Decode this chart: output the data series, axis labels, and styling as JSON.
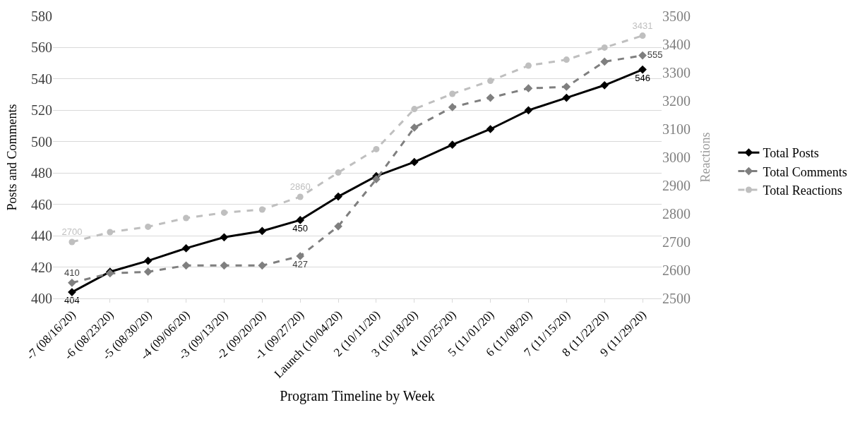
{
  "chart_data": {
    "type": "line",
    "xlabel": "Program Timeline by Week",
    "ylabel": "Posts and Comments",
    "y2label": "Reactions",
    "categories": [
      "-7 (08/16/20)",
      "-6 (08/23/20)",
      "-5 (08/30/20)",
      "-4 (09/06/20)",
      "-3 (09/13/20)",
      "-2 (09/20/20)",
      "-1 (09/27/20)",
      "Launch (10/04/20)",
      "2 (10/11/20)",
      "3 (10/18/20)",
      "4 (10/25/20)",
      "5 (11/01/20)",
      "6 (11/08/20)",
      "7 (11/15/20)",
      "8 (11/22/20)",
      "9 (11/29/20)"
    ],
    "series": [
      {
        "name": "Total Posts",
        "color": "#000000",
        "marker": "diamond",
        "line_style": "solid",
        "values": [
          404,
          417,
          424,
          432,
          439,
          443,
          450,
          465,
          478,
          487,
          498,
          508,
          520,
          528,
          536,
          546
        ],
        "value_labels": [
          "404",
          null,
          null,
          null,
          null,
          null,
          "450",
          null,
          null,
          null,
          null,
          null,
          null,
          null,
          null,
          "546"
        ]
      },
      {
        "name": "Total Comments",
        "color": "#7f7f7f",
        "marker": "diamond",
        "line_style": "dashed",
        "values": [
          410,
          416,
          417,
          421,
          421,
          421,
          427,
          446,
          476,
          509,
          522,
          528,
          534,
          535,
          551,
          555
        ],
        "value_labels": [
          "410",
          null,
          null,
          null,
          null,
          null,
          "427",
          null,
          null,
          null,
          null,
          null,
          null,
          null,
          null,
          "555"
        ]
      },
      {
        "name": "Total Reactions",
        "color": "#bfbfbf",
        "marker": "circle",
        "line_style": "dashed",
        "axis": "y2",
        "values": [
          2700,
          2735,
          2754,
          2785,
          2804,
          2815,
          2860,
          2946,
          3029,
          3171,
          3225,
          3271,
          3325,
          3346,
          3389,
          3431
        ],
        "value_labels": [
          "2700",
          null,
          null,
          null,
          null,
          null,
          "2860",
          null,
          null,
          null,
          null,
          null,
          null,
          null,
          null,
          "3431"
        ]
      }
    ],
    "ylim": [
      400,
      580
    ],
    "yticks": [
      400,
      420,
      440,
      460,
      480,
      500,
      520,
      540,
      560,
      580
    ],
    "y2lim": [
      2500,
      3500
    ],
    "y2ticks": [
      2500,
      2600,
      2700,
      2800,
      2900,
      3000,
      3100,
      3200,
      3300,
      3400,
      3500
    ],
    "grid": "y",
    "legend": "right"
  }
}
